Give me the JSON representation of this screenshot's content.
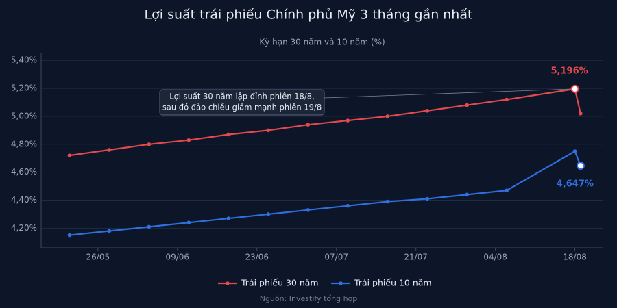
{
  "chart_data": {
    "type": "line",
    "title": "Lợi suất trái phiếu Chính phủ Mỹ 3 tháng gần nhất",
    "subtitle": "Kỳ hạn 30 năm và 10 năm (%)",
    "source": "Nguồn: Investify tổng hợp",
    "annotation": [
      "Lợi suất 30 năm lập đỉnh phiên 18/8,",
      "sau đó đảo chiều giảm mạnh phiên 19/8"
    ],
    "x": [
      "21/05",
      "28/05",
      "04/06",
      "11/06",
      "18/06",
      "25/06",
      "02/07",
      "09/07",
      "16/07",
      "23/07",
      "30/07",
      "06/08",
      "18/08",
      "19/08"
    ],
    "series": [
      {
        "name": "Trái phiếu 30 năm",
        "color": "#e5484d",
        "values": [
          4.72,
          4.76,
          4.8,
          4.83,
          4.87,
          4.9,
          4.94,
          4.97,
          5.0,
          5.04,
          5.08,
          5.12,
          5.196,
          5.02
        ],
        "value_labels": [
          null,
          null,
          null,
          null,
          null,
          null,
          null,
          null,
          null,
          null,
          null,
          null,
          "5,196%",
          null
        ]
      },
      {
        "name": "Trái phiếu 10 năm",
        "color": "#2f6fe0",
        "values": [
          4.15,
          4.18,
          4.21,
          4.24,
          4.27,
          4.3,
          4.33,
          4.36,
          4.39,
          4.41,
          4.44,
          4.47,
          4.75,
          4.647
        ],
        "value_labels": [
          null,
          null,
          null,
          null,
          null,
          null,
          null,
          null,
          null,
          null,
          null,
          null,
          null,
          "4,647%"
        ]
      }
    ],
    "xlim": [
      "16/05",
      "23/08"
    ],
    "xticks": [
      "26/05",
      "09/06",
      "23/06",
      "07/07",
      "21/07",
      "04/08",
      "18/08"
    ],
    "ylim": [
      4.06,
      5.45
    ],
    "yticks": [
      {
        "value": 4.2,
        "label": "4,20%"
      },
      {
        "value": 4.4,
        "label": "4,40%"
      },
      {
        "value": 4.6,
        "label": "4,60%"
      },
      {
        "value": 4.8,
        "label": "4,80%"
      },
      {
        "value": 5.0,
        "label": "5,00%"
      },
      {
        "value": 5.2,
        "label": "5,20%"
      },
      {
        "value": 5.4,
        "label": "5,40%"
      }
    ],
    "grid": true
  }
}
